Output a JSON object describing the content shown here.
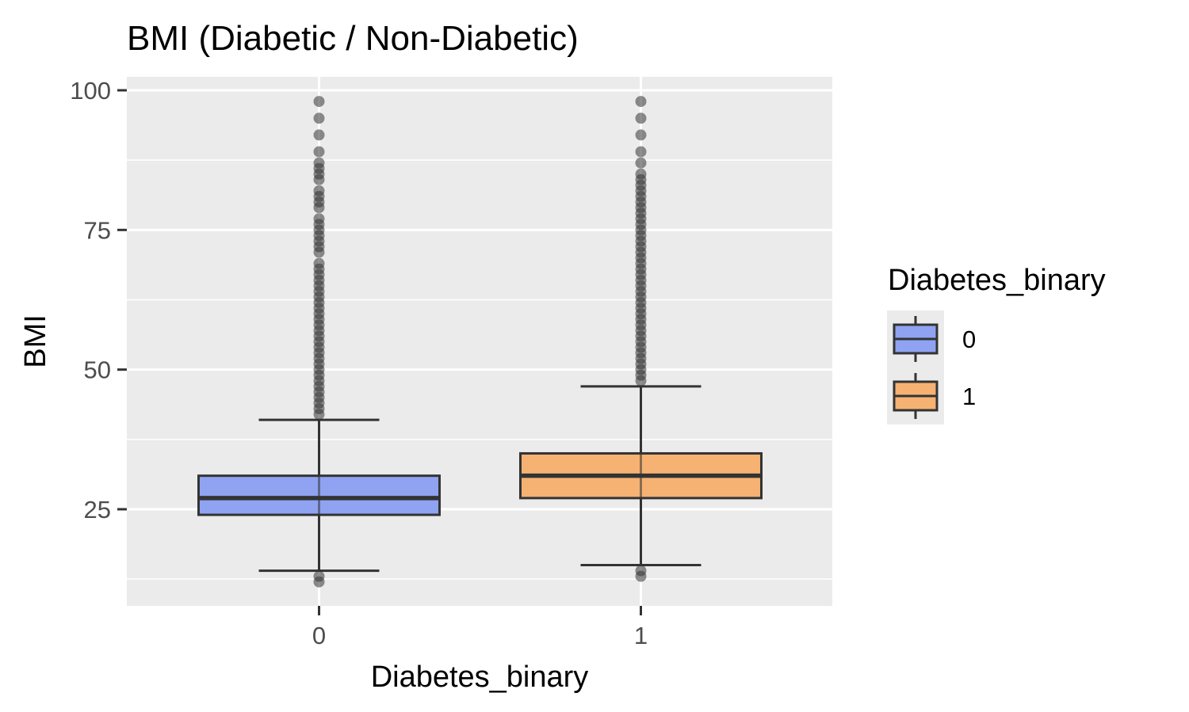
{
  "chart_data": {
    "type": "box",
    "title": "BMI (Diabetic / Non-Diabetic)",
    "xlabel": "Diabetes_binary",
    "ylabel": "BMI",
    "categories": [
      "0",
      "1"
    ],
    "ylim": [
      8,
      102
    ],
    "y_ticks": [
      25,
      50,
      75,
      100
    ],
    "y_minor_ticks": [
      12.5,
      37.5,
      62.5,
      87.5
    ],
    "grid": true,
    "legend": {
      "title": "Diabetes_binary",
      "position": "right",
      "entries": [
        "0",
        "1"
      ]
    },
    "series": [
      {
        "category": "0",
        "color": "#8fa3f2",
        "q1": 24,
        "median": 27,
        "q3": 31,
        "whisker_low": 14,
        "whisker_high": 41,
        "outliers": [
          12,
          13,
          42,
          43,
          44,
          45,
          46,
          47,
          48,
          49,
          50,
          51,
          52,
          53,
          54,
          55,
          56,
          57,
          58,
          59,
          60,
          61,
          62,
          63,
          64,
          65,
          66,
          67,
          68,
          69,
          71,
          72,
          73,
          74,
          75,
          76,
          77,
          79,
          80,
          81,
          82,
          84,
          85,
          86,
          87,
          89,
          92,
          95,
          98
        ]
      },
      {
        "category": "1",
        "color": "#f5b273",
        "q1": 27,
        "median": 31,
        "q3": 35,
        "whisker_low": 15,
        "whisker_high": 47,
        "outliers": [
          13,
          14,
          48,
          49,
          50,
          51,
          52,
          53,
          54,
          55,
          56,
          57,
          58,
          59,
          60,
          61,
          62,
          63,
          64,
          65,
          66,
          67,
          68,
          69,
          70,
          71,
          72,
          73,
          74,
          75,
          76,
          77,
          78,
          79,
          80,
          81,
          82,
          83,
          84,
          85,
          87,
          89,
          92,
          95,
          98
        ]
      }
    ]
  }
}
